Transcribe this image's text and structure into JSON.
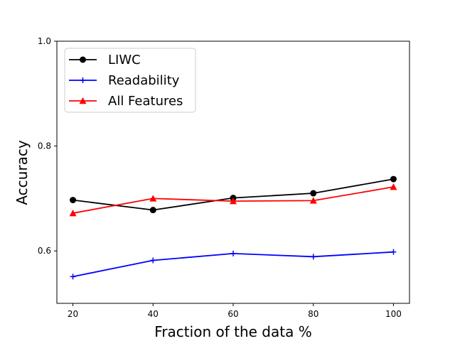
{
  "chart_data": {
    "type": "line",
    "title": "",
    "xlabel": "Fraction of the data %",
    "ylabel": "Accuracy",
    "x": [
      20,
      40,
      60,
      80,
      100
    ],
    "xticks": [
      20,
      40,
      60,
      80,
      100
    ],
    "xtick_labels": [
      "20",
      "40",
      "60",
      "80",
      "100"
    ],
    "yticks": [
      0.6,
      0.8,
      1.0
    ],
    "ytick_labels": [
      "0.6",
      "0.8",
      "1.0"
    ],
    "xlim": [
      16,
      104
    ],
    "ylim": [
      0.5,
      1.0
    ],
    "grid": false,
    "legend_position": "top-left",
    "series": [
      {
        "name": "LIWC",
        "color": "#000000",
        "marker": "circle",
        "values": [
          0.697,
          0.678,
          0.701,
          0.71,
          0.737
        ]
      },
      {
        "name": "Readability",
        "color": "#0000ff",
        "marker": "plus",
        "values": [
          0.551,
          0.582,
          0.595,
          0.589,
          0.598
        ]
      },
      {
        "name": "All Features",
        "color": "#ff0000",
        "marker": "triangle",
        "values": [
          0.672,
          0.7,
          0.695,
          0.696,
          0.722
        ]
      }
    ]
  }
}
